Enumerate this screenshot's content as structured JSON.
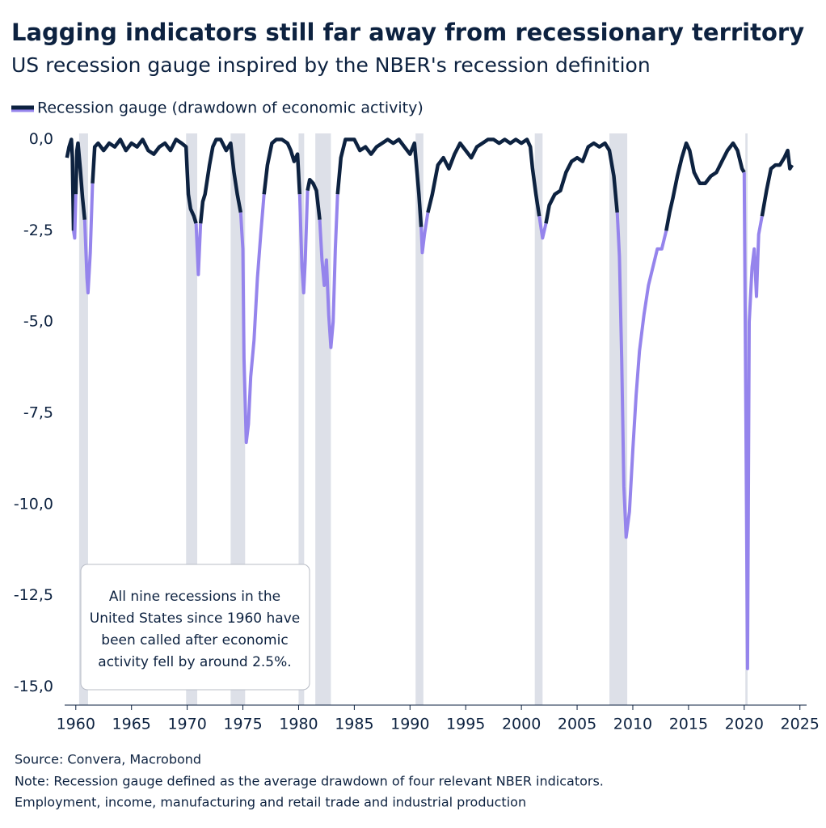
{
  "chart_data": {
    "type": "line",
    "title": "Lagging indicators still far away from recessionary territory",
    "subtitle": "US recession gauge inspired by the NBER's recession definition",
    "annotation": [
      "All nine recessions in the",
      "United States since 1960 have",
      "been called after economic",
      "activity fell by around 2.5%."
    ],
    "source": "Source: Convera, Macrobond",
    "notes": [
      "Note: Recession gauge defined as the average drawdown of four relevant NBER indicators.",
      "Employment, income, manufacturing and retail trade and industrial production"
    ],
    "xlim": [
      1959,
      2025.6
    ],
    "xticks": [
      1960,
      1965,
      1970,
      1975,
      1980,
      1985,
      1990,
      1995,
      2000,
      2005,
      2010,
      2015,
      2020,
      2025
    ],
    "ylim": [
      -15.5,
      0.3
    ],
    "yticks": [
      {
        "value": 0,
        "label": "0,0"
      },
      {
        "value": -2.5,
        "label": "-2,5"
      },
      {
        "value": -5,
        "label": "-5,0"
      },
      {
        "value": -7.5,
        "label": "-7,5"
      },
      {
        "value": -10,
        "label": "-10,0"
      },
      {
        "value": -12.5,
        "label": "-12,5"
      },
      {
        "value": -15,
        "label": "-15,0"
      }
    ],
    "recessions": [
      [
        1960.3,
        1961.1
      ],
      [
        1969.9,
        1970.9
      ],
      [
        1973.9,
        1975.2
      ],
      [
        1980.0,
        1980.5
      ],
      [
        1981.5,
        1982.9
      ],
      [
        1990.5,
        1991.2
      ],
      [
        2001.2,
        2001.9
      ],
      [
        2007.9,
        2009.5
      ],
      [
        2020.1,
        2020.3
      ]
    ],
    "recession_color": "#dde0e8",
    "highlight": {
      "color": "#9584ec",
      "below": -2.5
    },
    "x": [
      1959.2,
      1959.4,
      1959.6,
      1959.7,
      1959.8,
      1959.9,
      1960.0,
      1960.1,
      1960.2,
      1960.4,
      1960.6,
      1960.8,
      1961.0,
      1961.1,
      1961.3,
      1961.5,
      1961.7,
      1962,
      1962.5,
      1963,
      1963.5,
      1964,
      1964.5,
      1965,
      1965.5,
      1966,
      1966.5,
      1967,
      1967.5,
      1968,
      1968.5,
      1969,
      1969.5,
      1969.9,
      1970.1,
      1970.3,
      1970.6,
      1970.8,
      1970.9,
      1971.0,
      1971.2,
      1971.4,
      1971.6,
      1972,
      1972.3,
      1972.6,
      1973,
      1973.5,
      1973.9,
      1974.2,
      1974.5,
      1974.8,
      1975.0,
      1975.1,
      1975.3,
      1975.5,
      1975.7,
      1976.0,
      1976.3,
      1976.6,
      1976.9,
      1977.2,
      1977.6,
      1978,
      1978.5,
      1979,
      1979.3,
      1979.6,
      1979.9,
      1980.1,
      1980.3,
      1980.45,
      1980.6,
      1980.8,
      1981.0,
      1981.3,
      1981.6,
      1981.9,
      1982.1,
      1982.3,
      1982.5,
      1982.7,
      1982.9,
      1983.1,
      1983.3,
      1983.5,
      1983.8,
      1984.2,
      1985,
      1985.5,
      1986,
      1986.5,
      1987,
      1987.5,
      1988,
      1988.5,
      1989,
      1989.5,
      1990,
      1990.4,
      1990.6,
      1990.8,
      1991.0,
      1991.1,
      1991.3,
      1991.6,
      1992,
      1992.5,
      1993,
      1993.5,
      1994,
      1994.5,
      1995,
      1995.5,
      1996,
      1996.5,
      1997,
      1997.5,
      1998,
      1998.5,
      1999,
      1999.5,
      2000,
      2000.5,
      2000.8,
      2001.0,
      2001.3,
      2001.6,
      2001.9,
      2002.2,
      2002.5,
      2003,
      2003.5,
      2004,
      2004.5,
      2005,
      2005.5,
      2006,
      2006.5,
      2007,
      2007.5,
      2007.9,
      2008.3,
      2008.6,
      2008.8,
      2009.0,
      2009.2,
      2009.4,
      2009.7,
      2010.0,
      2010.3,
      2010.6,
      2011.0,
      2011.4,
      2011.8,
      2012.2,
      2012.6,
      2013.0,
      2013.3,
      2013.6,
      2014.0,
      2014.4,
      2014.8,
      2015.1,
      2015.5,
      2016,
      2016.5,
      2017,
      2017.5,
      2018,
      2018.5,
      2019,
      2019.4,
      2019.8,
      2020.0,
      2020.2,
      2020.3,
      2020.45,
      2020.7,
      2020.9,
      2021.1,
      2021.3,
      2021.6,
      2022.0,
      2022.4,
      2022.8,
      2023.2,
      2023.6,
      2023.9,
      2024.1,
      2024.3
    ],
    "series": [
      {
        "name": "Recession gauge (drawdown of economic activity)",
        "color": "#0d2240",
        "values": [
          -0.5,
          -0.2,
          0,
          -0.5,
          -2.5,
          -2.7,
          -1.5,
          -0.3,
          -0.1,
          -0.8,
          -1.6,
          -2.2,
          -3.8,
          -4.2,
          -3.1,
          -1.2,
          -0.2,
          -0.1,
          -0.3,
          -0.1,
          -0.2,
          0,
          -0.3,
          -0.1,
          -0.2,
          0,
          -0.3,
          -0.4,
          -0.2,
          -0.1,
          -0.3,
          0,
          -0.1,
          -0.2,
          -1.5,
          -1.9,
          -2.1,
          -2.3,
          -3.0,
          -3.7,
          -2.3,
          -1.7,
          -1.5,
          -0.7,
          -0.2,
          0,
          0,
          -0.3,
          -0.1,
          -0.9,
          -1.5,
          -2.0,
          -3.0,
          -6.0,
          -8.3,
          -7.8,
          -6.5,
          -5.5,
          -3.8,
          -2.6,
          -1.5,
          -0.7,
          -0.1,
          0,
          0,
          -0.1,
          -0.3,
          -0.6,
          -0.4,
          -1.5,
          -3.5,
          -4.2,
          -3.3,
          -1.4,
          -1.1,
          -1.2,
          -1.4,
          -2.2,
          -3.3,
          -4.0,
          -3.3,
          -4.8,
          -5.7,
          -5.0,
          -3.0,
          -1.5,
          -0.5,
          0,
          0,
          -0.3,
          -0.2,
          -0.4,
          -0.2,
          -0.1,
          0,
          -0.1,
          0,
          -0.2,
          -0.4,
          -0.1,
          -0.8,
          -1.5,
          -2.4,
          -3.1,
          -2.6,
          -2.0,
          -1.5,
          -0.7,
          -0.5,
          -0.8,
          -0.4,
          -0.1,
          -0.3,
          -0.5,
          -0.2,
          -0.1,
          0,
          0,
          -0.1,
          0,
          -0.1,
          0,
          -0.1,
          0,
          -0.2,
          -0.8,
          -1.5,
          -2.1,
          -2.7,
          -2.3,
          -1.8,
          -1.5,
          -1.4,
          -0.9,
          -0.6,
          -0.5,
          -0.6,
          -0.2,
          -0.1,
          -0.2,
          -0.1,
          -0.3,
          -1.0,
          -2.0,
          -3.2,
          -6.0,
          -9.5,
          -10.9,
          -10.2,
          -8.5,
          -7.0,
          -5.8,
          -4.8,
          -4.0,
          -3.5,
          -3.0,
          -3.0,
          -2.5,
          -2.0,
          -1.6,
          -1.0,
          -0.5,
          -0.1,
          -0.3,
          -0.9,
          -1.2,
          -1.2,
          -1.0,
          -0.9,
          -0.6,
          -0.3,
          -0.1,
          -0.3,
          -0.8,
          -0.9,
          -10.0,
          -14.5,
          -5.0,
          -3.5,
          -3.0,
          -4.3,
          -2.6,
          -2.1,
          -1.4,
          -0.8,
          -0.7,
          -0.7,
          -0.5,
          -0.3,
          -0.8,
          -0.7
        ]
      }
    ]
  }
}
